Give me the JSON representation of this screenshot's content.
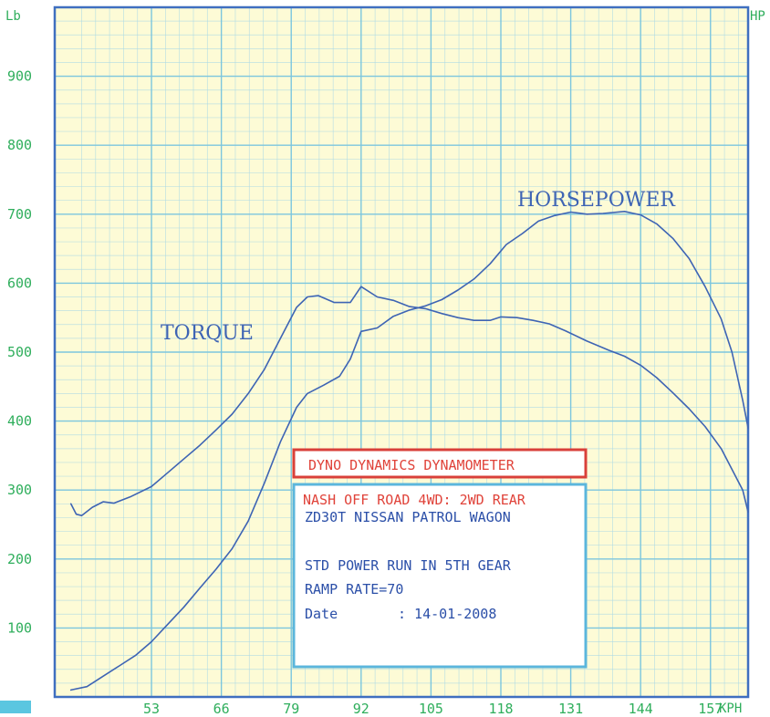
{
  "chart_data": {
    "type": "line",
    "xlabel": "KPH",
    "ylabel_left": "Lb",
    "ylabel_right": "HP",
    "x_ticks": [
      53,
      66,
      79,
      92,
      105,
      118,
      131,
      144,
      157
    ],
    "y_ticks": [
      100,
      200,
      300,
      400,
      500,
      600,
      700,
      800,
      900
    ],
    "xlim": [
      35,
      164
    ],
    "ylim": [
      0,
      1000
    ],
    "grid": true,
    "series": [
      {
        "name": "TORQUE",
        "color": "#3e64b4",
        "points": [
          [
            38,
            280
          ],
          [
            39,
            265
          ],
          [
            40,
            263
          ],
          [
            42,
            275
          ],
          [
            44,
            283
          ],
          [
            46,
            281
          ],
          [
            49,
            290
          ],
          [
            53,
            305
          ],
          [
            56,
            325
          ],
          [
            59,
            345
          ],
          [
            62,
            365
          ],
          [
            65,
            387
          ],
          [
            68,
            410
          ],
          [
            71,
            440
          ],
          [
            74,
            475
          ],
          [
            77,
            520
          ],
          [
            80,
            565
          ],
          [
            82,
            580
          ],
          [
            84,
            582
          ],
          [
            87,
            572
          ],
          [
            90,
            572
          ],
          [
            92,
            595
          ],
          [
            95,
            580
          ],
          [
            98,
            575
          ],
          [
            101,
            566
          ],
          [
            104,
            563
          ],
          [
            107,
            556
          ],
          [
            110,
            550
          ],
          [
            113,
            546
          ],
          [
            116,
            546
          ],
          [
            118,
            551
          ],
          [
            121,
            550
          ],
          [
            124,
            546
          ],
          [
            127,
            541
          ],
          [
            130,
            531
          ],
          [
            134,
            516
          ],
          [
            138,
            503
          ],
          [
            141,
            494
          ],
          [
            144,
            481
          ],
          [
            147,
            463
          ],
          [
            150,
            441
          ],
          [
            153,
            418
          ],
          [
            156,
            392
          ],
          [
            159,
            360
          ],
          [
            161,
            330
          ],
          [
            163,
            300
          ],
          [
            164,
            268
          ]
        ]
      },
      {
        "name": "HORSEPOWER",
        "color": "#3e64b4",
        "points": [
          [
            38,
            10
          ],
          [
            41,
            15
          ],
          [
            44,
            30
          ],
          [
            47,
            45
          ],
          [
            50,
            60
          ],
          [
            53,
            80
          ],
          [
            56,
            105
          ],
          [
            59,
            130
          ],
          [
            62,
            158
          ],
          [
            65,
            185
          ],
          [
            68,
            215
          ],
          [
            71,
            255
          ],
          [
            74,
            310
          ],
          [
            77,
            370
          ],
          [
            80,
            420
          ],
          [
            82,
            440
          ],
          [
            85,
            452
          ],
          [
            88,
            465
          ],
          [
            90,
            490
          ],
          [
            92,
            530
          ],
          [
            95,
            535
          ],
          [
            98,
            552
          ],
          [
            101,
            561
          ],
          [
            104,
            567
          ],
          [
            107,
            576
          ],
          [
            110,
            590
          ],
          [
            113,
            606
          ],
          [
            116,
            628
          ],
          [
            119,
            656
          ],
          [
            122,
            672
          ],
          [
            125,
            690
          ],
          [
            128,
            698
          ],
          [
            131,
            703
          ],
          [
            134,
            700
          ],
          [
            137,
            701
          ],
          [
            141,
            704
          ],
          [
            144,
            699
          ],
          [
            147,
            686
          ],
          [
            150,
            665
          ],
          [
            153,
            636
          ],
          [
            156,
            595
          ],
          [
            159,
            548
          ],
          [
            161,
            500
          ],
          [
            163,
            430
          ],
          [
            164,
            390
          ]
        ]
      }
    ],
    "annotations": {
      "torque_label": "TORQUE",
      "horsepower_label": "HORSEPOWER"
    },
    "legend": "none"
  },
  "info_box": {
    "title": "DYNO DYNAMICS DYNAMOMETER",
    "line1": "NASH OFF ROAD 4WD: 2WD REAR",
    "line2": "ZD30T NISSAN PATROL WAGON",
    "line3": "STD POWER RUN IN 5TH GEAR",
    "line4": "RAMP RATE=70",
    "line5_label": "Date",
    "line5_value": ": 14-01-2008"
  },
  "colors": {
    "grid_background": "#fdfbd6",
    "grid_line": "#a8d8e6",
    "frame": "#3f6fc0",
    "tick_text": "#2fae5c",
    "curve": "#3e64b4",
    "box_border_title": "#d9403a",
    "box_border_info": "#5bb6dc"
  }
}
